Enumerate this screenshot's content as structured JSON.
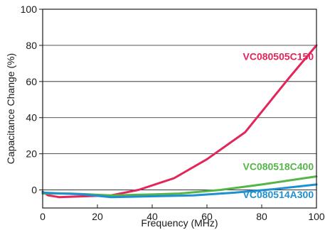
{
  "chart_data": {
    "type": "line",
    "title": "",
    "xlabel": "Frequency (MHz)",
    "ylabel": "Capacitance Change (%)",
    "xlim": [
      0,
      100
    ],
    "ylim": [
      -10,
      100
    ],
    "x_ticks": [
      "0",
      "20",
      "40",
      "60",
      "80",
      "100"
    ],
    "y_ticks": [
      "0",
      "20",
      "40",
      "60",
      "80",
      "100"
    ],
    "grid": "horizontal",
    "series": [
      {
        "name": "VC080505C150",
        "color": "#e3255a",
        "points": [
          [
            0,
            -1
          ],
          [
            2,
            -3
          ],
          [
            6,
            -4
          ],
          [
            15,
            -3.5
          ],
          [
            25,
            -3
          ],
          [
            35,
            0
          ],
          [
            48,
            6.5
          ],
          [
            60,
            17
          ],
          [
            74,
            32
          ],
          [
            82,
            47
          ],
          [
            90,
            62
          ],
          [
            100,
            80
          ]
        ]
      },
      {
        "name": "VC080518C400",
        "color": "#55b548",
        "points": [
          [
            0,
            -2
          ],
          [
            10,
            -2
          ],
          [
            25,
            -3
          ],
          [
            40,
            -2.5
          ],
          [
            50,
            -2
          ],
          [
            65,
            0
          ],
          [
            80,
            3
          ],
          [
            100,
            7.5
          ]
        ]
      },
      {
        "name": "VC080514A300",
        "color": "#1e8fd0",
        "points": [
          [
            0,
            -1.5
          ],
          [
            15,
            -2.5
          ],
          [
            25,
            -4
          ],
          [
            40,
            -3.5
          ],
          [
            55,
            -3
          ],
          [
            70,
            -1.5
          ],
          [
            85,
            0.5
          ],
          [
            100,
            3
          ]
        ]
      }
    ]
  }
}
